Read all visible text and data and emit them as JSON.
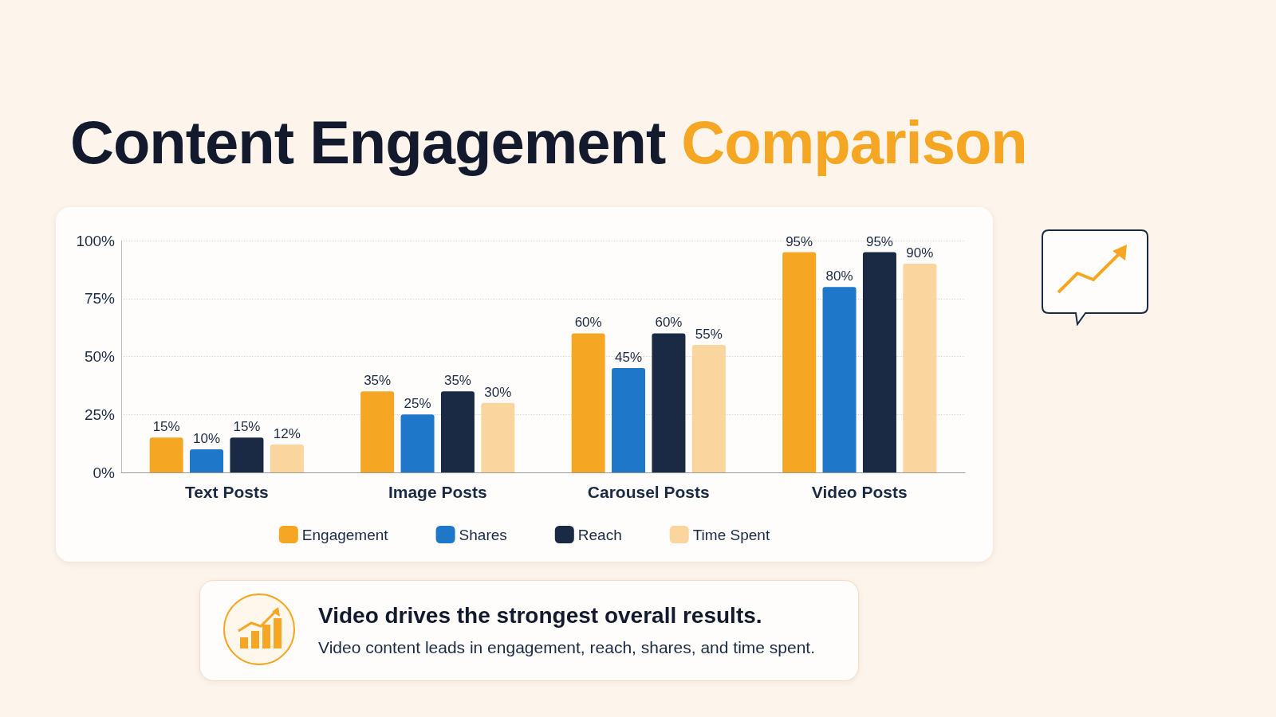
{
  "chart_data": {
    "type": "bar",
    "title": "Content Engagement Comparison",
    "categories": [
      "Text Posts",
      "Image Posts",
      "Carousel Posts",
      "Video Posts"
    ],
    "series": [
      {
        "name": "Engagement",
        "color": "#f5a623",
        "values": [
          15,
          35,
          60,
          95
        ],
        "value_labels": [
          "15%",
          "35%",
          "60%",
          "95%"
        ]
      },
      {
        "name": "Shares",
        "color": "#1e77c8",
        "values": [
          10,
          25,
          45,
          80
        ],
        "value_labels": [
          "10%",
          "25%",
          "45%",
          "80%"
        ]
      },
      {
        "name": "Reach",
        "color": "#1b2a44",
        "values": [
          15,
          35,
          60,
          95
        ],
        "value_labels": [
          "15%",
          "35%",
          "60%",
          "95%"
        ]
      },
      {
        "name": "Time Spent",
        "color": "#fbd59e",
        "values": [
          12,
          30,
          55,
          90
        ],
        "value_labels": [
          "12%",
          "30%",
          "55%",
          "90%"
        ]
      }
    ],
    "ylim": [
      0,
      100
    ],
    "yticks": [
      {
        "value": 0,
        "label": "0%"
      },
      {
        "value": 25,
        "label": "25%"
      },
      {
        "value": 50,
        "label": "50%"
      },
      {
        "value": 75,
        "label": "75%"
      },
      {
        "value": 100,
        "label": "100%"
      }
    ],
    "grid": "y",
    "legend": "bottom",
    "annotations": [
      "Video drives the strongest overall results.",
      "Video content leads in engagement, reach, shares, and time spent."
    ]
  }
}
